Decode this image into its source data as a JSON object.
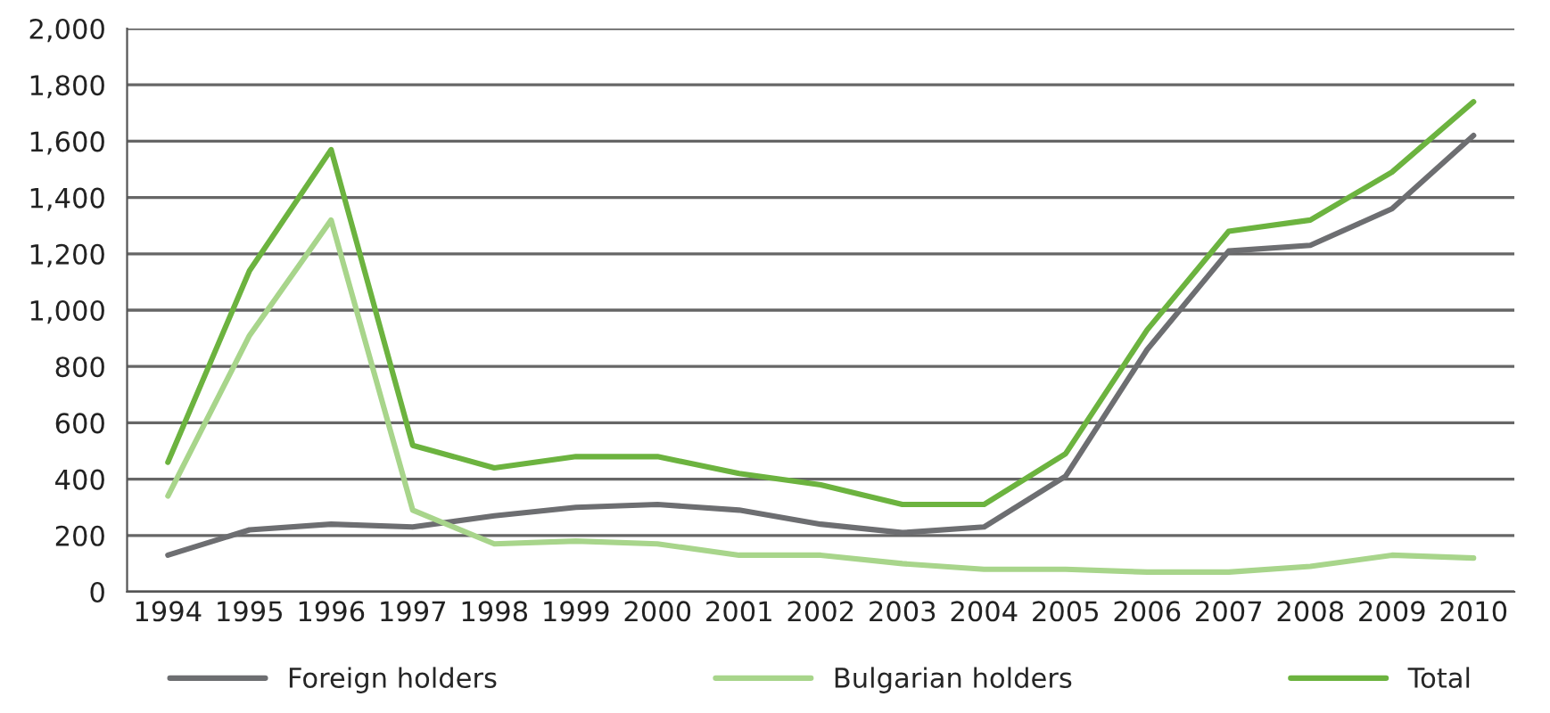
{
  "chart_data": {
    "type": "line",
    "categories": [
      "1994",
      "1995",
      "1996",
      "1997",
      "1998",
      "1999",
      "2000",
      "2001",
      "2002",
      "2003",
      "2004",
      "2005",
      "2006",
      "2007",
      "2008",
      "2009",
      "2010"
    ],
    "series": [
      {
        "name": "Foreign holders",
        "color": "#6d6e71",
        "values": [
          130,
          220,
          240,
          230,
          270,
          300,
          310,
          290,
          240,
          210,
          230,
          410,
          860,
          1210,
          1230,
          1360,
          1620
        ]
      },
      {
        "name": "Bulgarian holders",
        "color": "#a8d58b",
        "values": [
          340,
          910,
          1320,
          290,
          170,
          180,
          170,
          130,
          130,
          100,
          80,
          80,
          70,
          70,
          90,
          130,
          120
        ]
      },
      {
        "name": "Total",
        "color": "#6cb33f",
        "values": [
          460,
          1140,
          1570,
          520,
          440,
          480,
          480,
          420,
          380,
          310,
          310,
          490,
          930,
          1280,
          1320,
          1490,
          1740
        ]
      }
    ],
    "ylim": [
      0,
      2000
    ],
    "yticks": [
      0,
      {
        "value": 200,
        "label": "200"
      },
      {
        "value": 400,
        "label": "400"
      },
      {
        "value": 600,
        "label": "600"
      },
      {
        "value": 800,
        "label": "800"
      },
      {
        "value": 1000,
        "label": "1,000"
      },
      {
        "value": 1200,
        "label": "1,200"
      },
      {
        "value": 1400,
        "label": "1,400"
      },
      {
        "value": 1600,
        "label": "1,600"
      },
      {
        "value": 1800,
        "label": "1,800"
      },
      {
        "value": 2000,
        "label": "2,000"
      }
    ],
    "grid": "y",
    "legend": "bottom",
    "marker": "none",
    "line_style": "solid"
  }
}
